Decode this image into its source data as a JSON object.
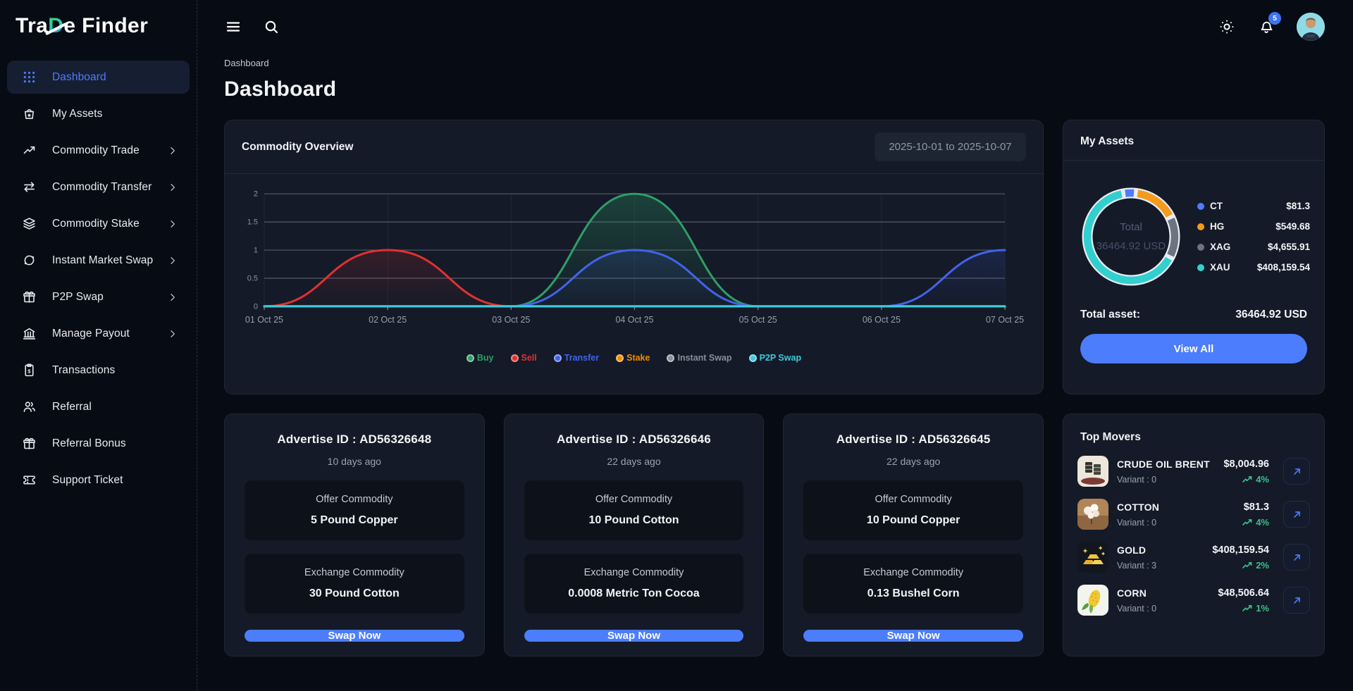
{
  "brand": {
    "name_part1": "Tra",
    "name_accent": "D",
    "name_part2": "e Finder"
  },
  "topbar": {
    "notification_count": "5"
  },
  "breadcrumb": "Dashboard",
  "page_title": "Dashboard",
  "sidebar": {
    "items": [
      {
        "label": "Dashboard",
        "icon": "grid",
        "active": true,
        "chevron": false
      },
      {
        "label": "My Assets",
        "icon": "basket",
        "active": false,
        "chevron": false
      },
      {
        "label": "Commodity Trade",
        "icon": "trend",
        "active": false,
        "chevron": true
      },
      {
        "label": "Commodity Transfer",
        "icon": "arrows",
        "active": false,
        "chevron": true
      },
      {
        "label": "Commodity Stake",
        "icon": "layers",
        "active": false,
        "chevron": true
      },
      {
        "label": "Instant Market Swap",
        "icon": "swap",
        "active": false,
        "chevron": true
      },
      {
        "label": "P2P Swap",
        "icon": "gift",
        "active": false,
        "chevron": true
      },
      {
        "label": "Manage Payout",
        "icon": "bank",
        "active": false,
        "chevron": true
      },
      {
        "label": "Transactions",
        "icon": "receipt",
        "active": false,
        "chevron": false
      },
      {
        "label": "Referral",
        "icon": "users",
        "active": false,
        "chevron": false
      },
      {
        "label": "Referral Bonus",
        "icon": "gift",
        "active": false,
        "chevron": false
      },
      {
        "label": "Support Ticket",
        "icon": "ticket",
        "active": false,
        "chevron": false
      }
    ]
  },
  "chart_card": {
    "title": "Commodity Overview",
    "date_range": "2025-10-01 to 2025-10-07"
  },
  "chart_data": {
    "type": "line",
    "x": [
      "01 Oct 25",
      "02 Oct 25",
      "03 Oct 25",
      "04 Oct 25",
      "05 Oct 25",
      "06 Oct 25",
      "07 Oct 25"
    ],
    "ylim": [
      0,
      2
    ],
    "yticks": [
      0,
      0.5,
      1,
      1.5,
      2
    ],
    "grid": true,
    "legend_position": "bottom",
    "series": [
      {
        "name": "Buy",
        "color": "#2f9e68",
        "values": [
          0,
          0,
          0,
          2,
          0,
          0,
          0
        ]
      },
      {
        "name": "Sell",
        "color": "#e03131",
        "values": [
          0,
          1,
          0,
          0,
          0,
          0,
          0
        ]
      },
      {
        "name": "Transfer",
        "color": "#4263eb",
        "values": [
          0,
          0,
          0,
          1,
          0,
          0,
          1
        ]
      },
      {
        "name": "Stake",
        "color": "#f08c00",
        "values": [
          0,
          0,
          0,
          0,
          0,
          0,
          0
        ]
      },
      {
        "name": "Instant Swap",
        "color": "#868e96",
        "values": [
          0,
          0,
          0,
          0,
          0,
          0,
          0
        ]
      },
      {
        "name": "P2P Swap",
        "color": "#3bc9db",
        "values": [
          0,
          0,
          0,
          0,
          0,
          0,
          0
        ]
      }
    ]
  },
  "my_assets": {
    "title": "My Assets",
    "donut_center_label": "Total",
    "donut_center_value": "36464.92 USD",
    "assets": [
      {
        "symbol": "CT",
        "value": "$81.3",
        "color": "#4d7cfe",
        "pct": 4.5
      },
      {
        "symbol": "HG",
        "value": "$549.68",
        "color": "#f29b1d",
        "pct": 16
      },
      {
        "symbol": "XAG",
        "value": "$4,655.91",
        "color": "#6c7480",
        "pct": 15
      },
      {
        "symbol": "XAU",
        "value": "$408,159.54",
        "color": "#32cfcf",
        "pct": 64.5
      }
    ],
    "total_label": "Total asset:",
    "total_value": "36464.92 USD",
    "view_all_label": "View All"
  },
  "advertise_cards": [
    {
      "title": "Advertise ID : AD56326648",
      "age": "10 days ago",
      "offer_label": "Offer Commodity",
      "offer_value": "5 Pound Copper",
      "exchange_label": "Exchange Commodity",
      "exchange_value": "30 Pound Cotton",
      "button": "Swap Now"
    },
    {
      "title": "Advertise ID : AD56326646",
      "age": "22 days ago",
      "offer_label": "Offer Commodity",
      "offer_value": "10 Pound Cotton",
      "exchange_label": "Exchange Commodity",
      "exchange_value": "0.0008 Metric Ton Cocoa",
      "button": "Swap Now"
    },
    {
      "title": "Advertise ID : AD56326645",
      "age": "22 days ago",
      "offer_label": "Offer Commodity",
      "offer_value": "10 Pound Copper",
      "exchange_label": "Exchange Commodity",
      "exchange_value": "0.13 Bushel Corn",
      "button": "Swap Now"
    }
  ],
  "top_movers": {
    "title": "Top Movers",
    "items": [
      {
        "name": "CRUDE OIL BRENT",
        "variant": "Variant : 0",
        "price": "$8,004.96",
        "change": "4%",
        "thumb": "oil"
      },
      {
        "name": "COTTON",
        "variant": "Variant : 0",
        "price": "$81.3",
        "change": "4%",
        "thumb": "cotton"
      },
      {
        "name": "GOLD",
        "variant": "Variant : 3",
        "price": "$408,159.54",
        "change": "2%",
        "thumb": "gold"
      },
      {
        "name": "CORN",
        "variant": "Variant : 0",
        "price": "$48,506.64",
        "change": "1%",
        "thumb": "corn"
      }
    ]
  },
  "colors": {
    "accent": "#4c7dfc",
    "positive": "#3fbf8c",
    "page_bg": "#070b13",
    "card_bg": "#141a27"
  }
}
